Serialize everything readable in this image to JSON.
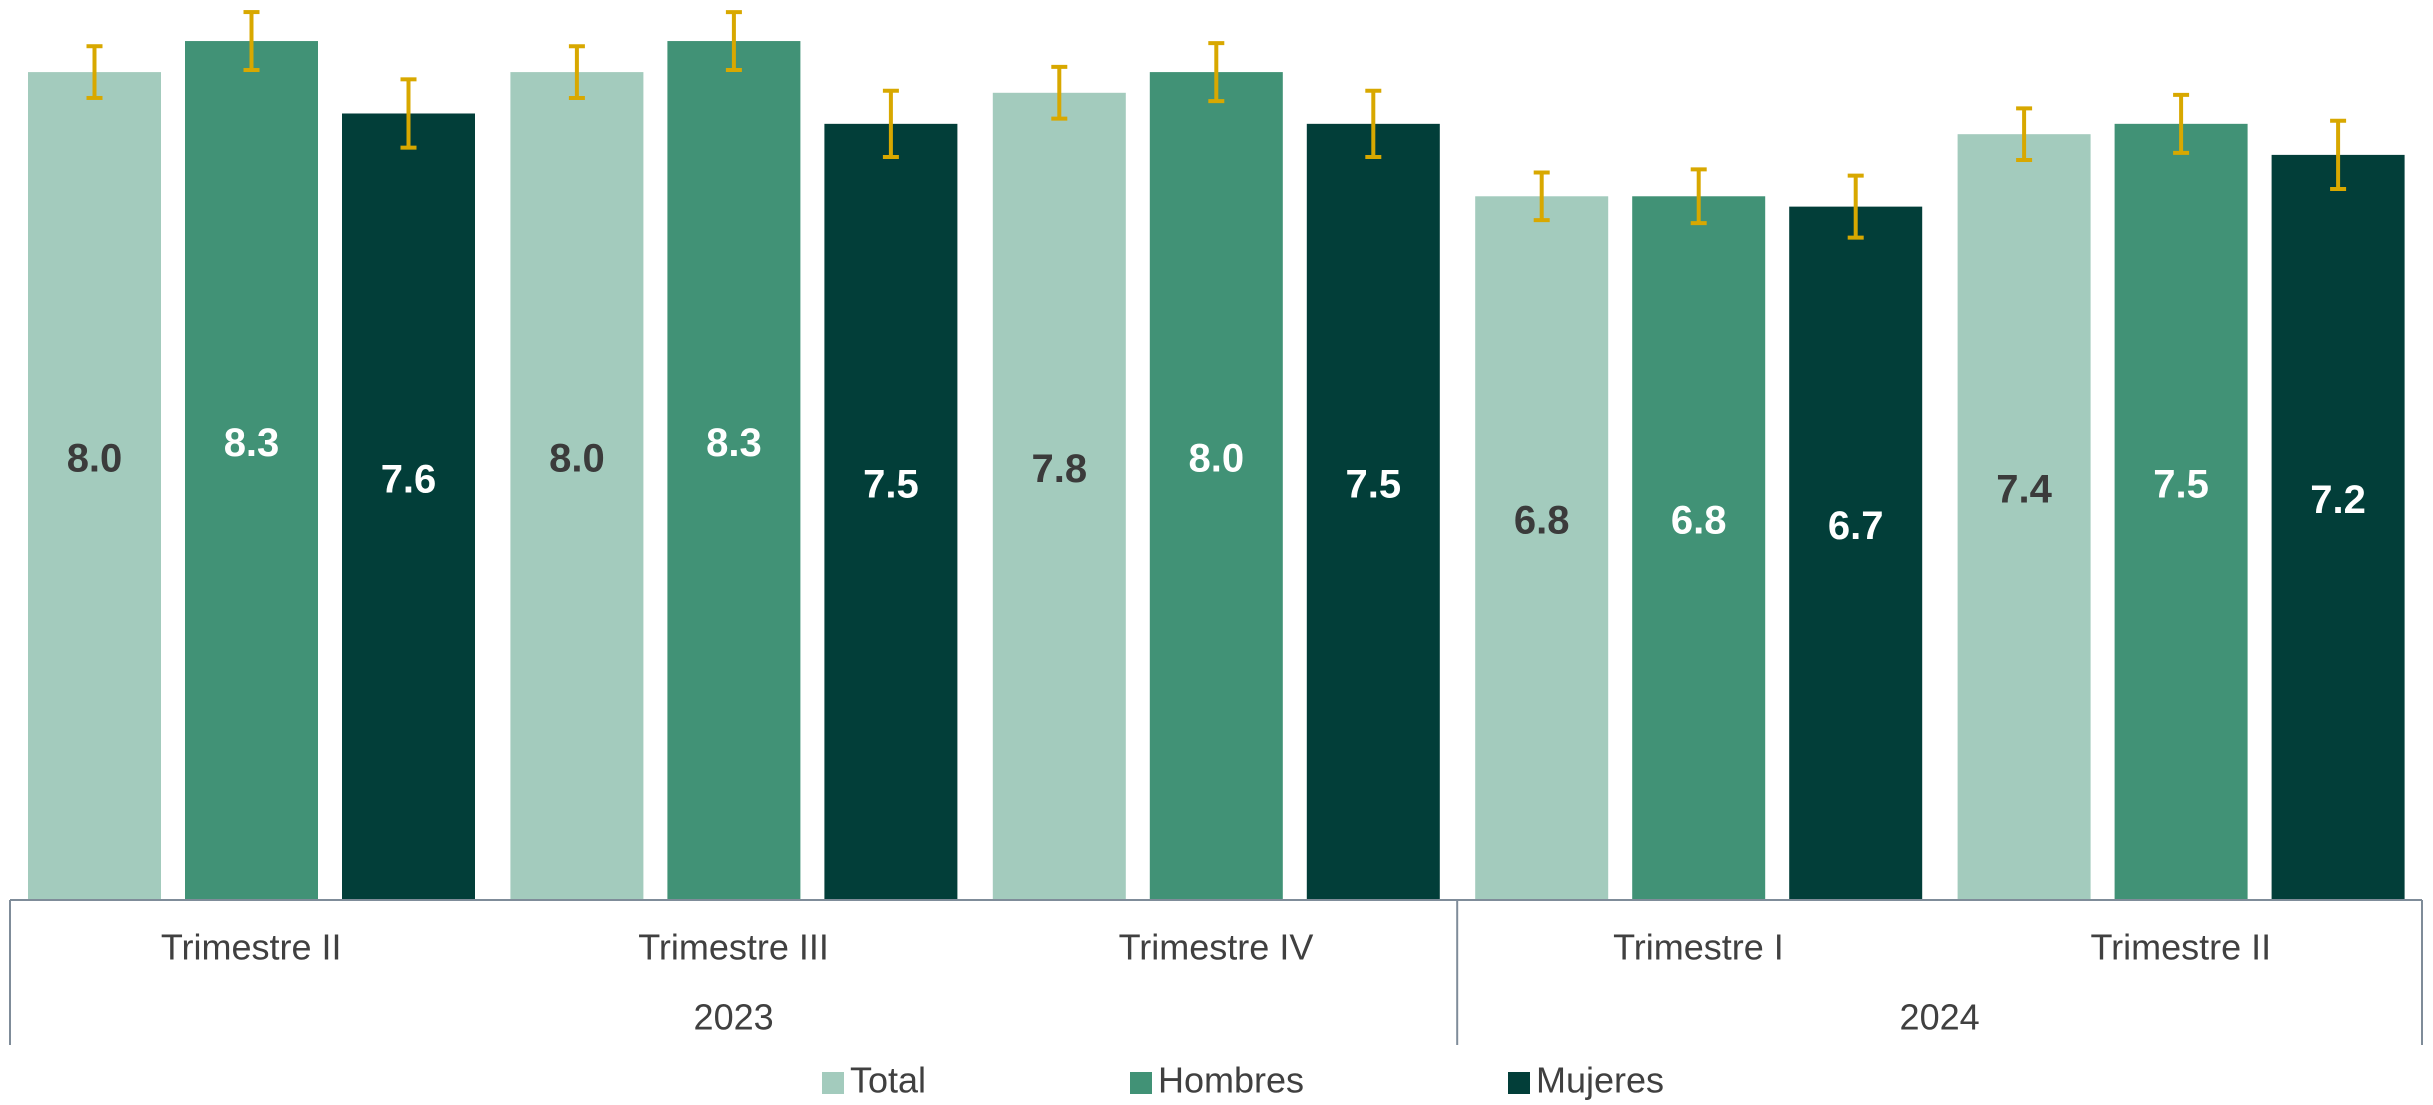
{
  "chart_data": {
    "type": "bar",
    "title": "",
    "xlabel": "",
    "ylabel": "",
    "ylim": [
      0,
      8.6
    ],
    "grid": false,
    "legend_position": "bottom",
    "categories": [
      "Trimestre II",
      "Trimestre III",
      "Trimestre IV",
      "Trimestre I",
      "Trimestre II"
    ],
    "groups": [
      {
        "label": "2023",
        "span": 3
      },
      {
        "label": "2024",
        "span": 2
      }
    ],
    "series": [
      {
        "name": "Total",
        "color": "#a3cbbd",
        "label_color": "#3b3b3b",
        "values": [
          8.0,
          8.0,
          7.8,
          6.8,
          7.4
        ],
        "labels": [
          "8.0",
          "8.0",
          "7.8",
          "6.8",
          "7.4"
        ],
        "error": [
          0.25,
          0.25,
          0.25,
          0.23,
          0.25
        ]
      },
      {
        "name": "Hombres",
        "color": "#419276",
        "label_color": "#ffffff",
        "values": [
          8.3,
          8.3,
          8.0,
          6.8,
          7.5
        ],
        "labels": [
          "8.3",
          "8.3",
          "8.0",
          "6.8",
          "7.5"
        ],
        "error": [
          0.28,
          0.28,
          0.28,
          0.26,
          0.28
        ]
      },
      {
        "name": "Mujeres",
        "color": "#023e39",
        "label_color": "#ffffff",
        "values": [
          7.6,
          7.5,
          7.5,
          6.7,
          7.2
        ],
        "labels": [
          "7.6",
          "7.5",
          "7.5",
          "6.7",
          "7.2"
        ],
        "error": [
          0.33,
          0.32,
          0.32,
          0.3,
          0.33
        ]
      }
    ],
    "error_bar_color": "#d8a800"
  }
}
